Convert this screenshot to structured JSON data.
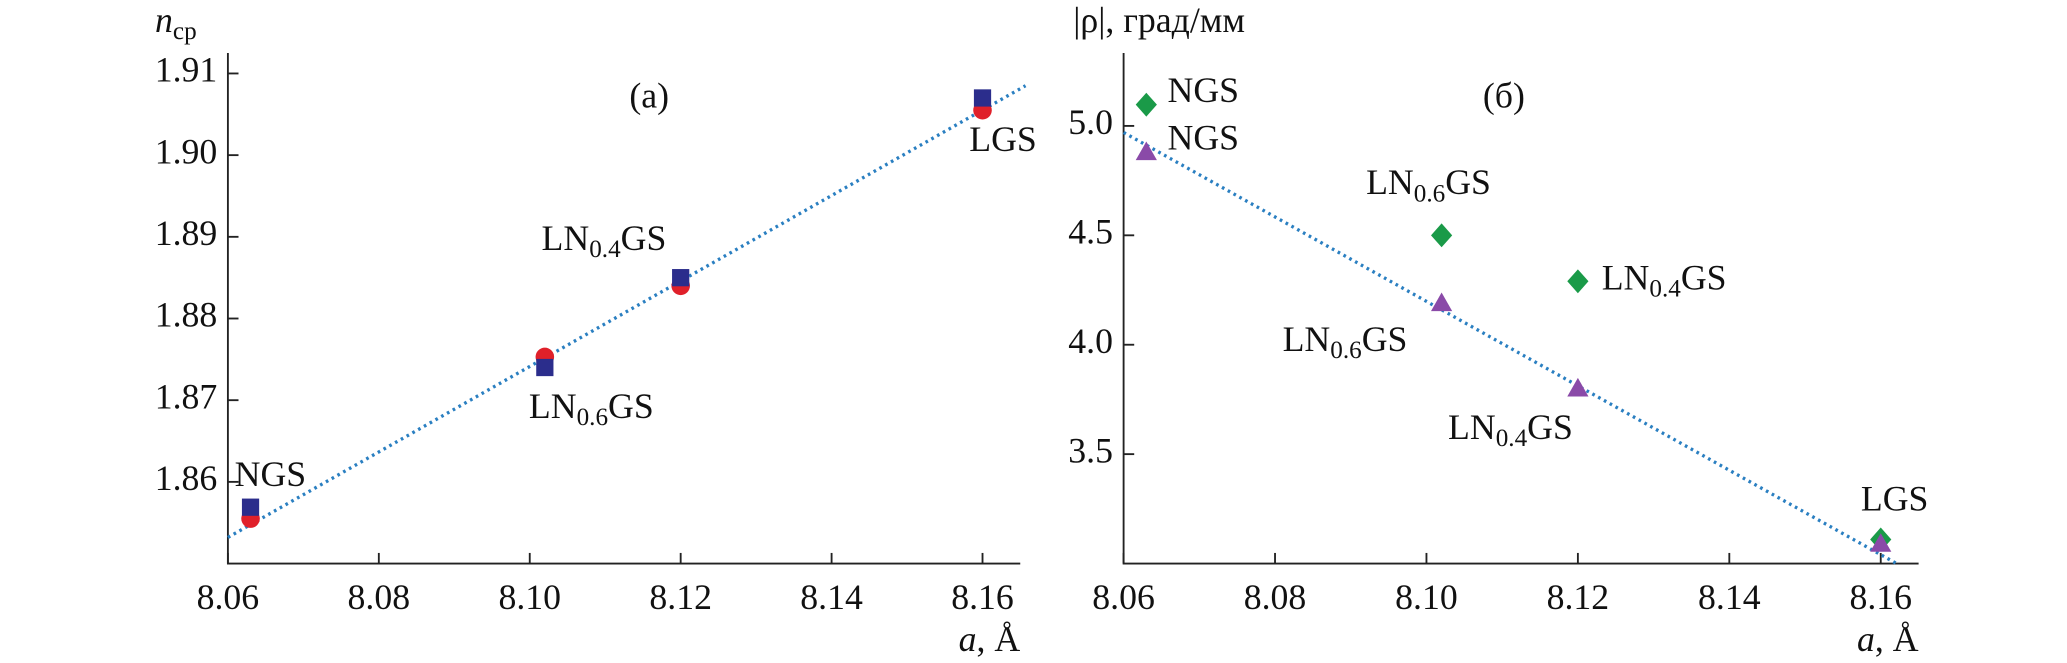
{
  "chart_data": [
    {
      "type": "scatter",
      "panel_label": "(а)",
      "y_label": "nср",
      "x_label": "a, Å",
      "xlim": [
        8.06,
        8.165
      ],
      "ylim": [
        1.85,
        1.9125
      ],
      "xticks": [
        8.06,
        8.08,
        {
          "value": 8.1,
          "label": "8.10"
        },
        8.12,
        8.14,
        8.16
      ],
      "yticks": [
        1.91,
        {
          "value": 1.9,
          "label": "1.90"
        },
        1.89,
        1.88,
        1.87,
        1.86
      ],
      "series": [
        {
          "marker": "circle",
          "color": "#e0202a",
          "x": [
            8.063,
            8.102,
            8.12,
            8.16
          ],
          "values": [
            1.8555,
            1.8753,
            1.884,
            1.9055
          ]
        },
        {
          "marker": "square",
          "color": "#2b2d8c",
          "x": [
            8.063,
            8.102,
            8.12,
            8.16
          ],
          "values": [
            1.8569,
            1.874,
            1.885,
            1.907
          ],
          "labels": [
            "NGS",
            "LN0.6GS",
            "LN0.4GS",
            "LGS"
          ]
        }
      ],
      "fit": {
        "color": "#2a7fc1",
        "x": [
          8.06,
          8.1657
        ],
        "values": [
          1.8532,
          1.9085
        ]
      }
    },
    {
      "type": "scatter",
      "panel_label": "(б)",
      "y_label": "|ρ|, град/мм",
      "x_label": "a, Å",
      "xlim": [
        8.06,
        8.165
      ],
      "ylim": [
        3.0,
        5.333
      ],
      "xticks": [
        8.06,
        8.08,
        {
          "value": 8.1,
          "label": "8.10"
        },
        8.12,
        8.14,
        8.16
      ],
      "yticks": [
        {
          "value": 5,
          "label": "5.0"
        },
        4.5,
        {
          "value": 4,
          "label": "4.0"
        },
        3.5
      ],
      "series": [
        {
          "marker": "diamond",
          "color": "#1a9a48",
          "x": [
            8.063,
            8.102,
            8.12,
            8.16
          ],
          "values": [
            5.097,
            4.5,
            4.29,
            3.11
          ],
          "labels": [
            "NGS",
            "LN0.6GS",
            "LN0.4GS",
            "LGS"
          ]
        },
        {
          "marker": "triangle",
          "color": "#8a4aa8",
          "x": [
            8.063,
            8.102,
            8.12,
            8.16
          ],
          "values": [
            4.88,
            4.19,
            3.8,
            3.09
          ],
          "labels": [
            "NGS",
            "LN0.6GS",
            "LN0.4GS",
            null
          ]
        }
      ],
      "fit": {
        "color": "#2a7fc1",
        "x": [
          8.06,
          8.1621
        ],
        "values": [
          4.97,
          3.0
        ]
      }
    }
  ]
}
